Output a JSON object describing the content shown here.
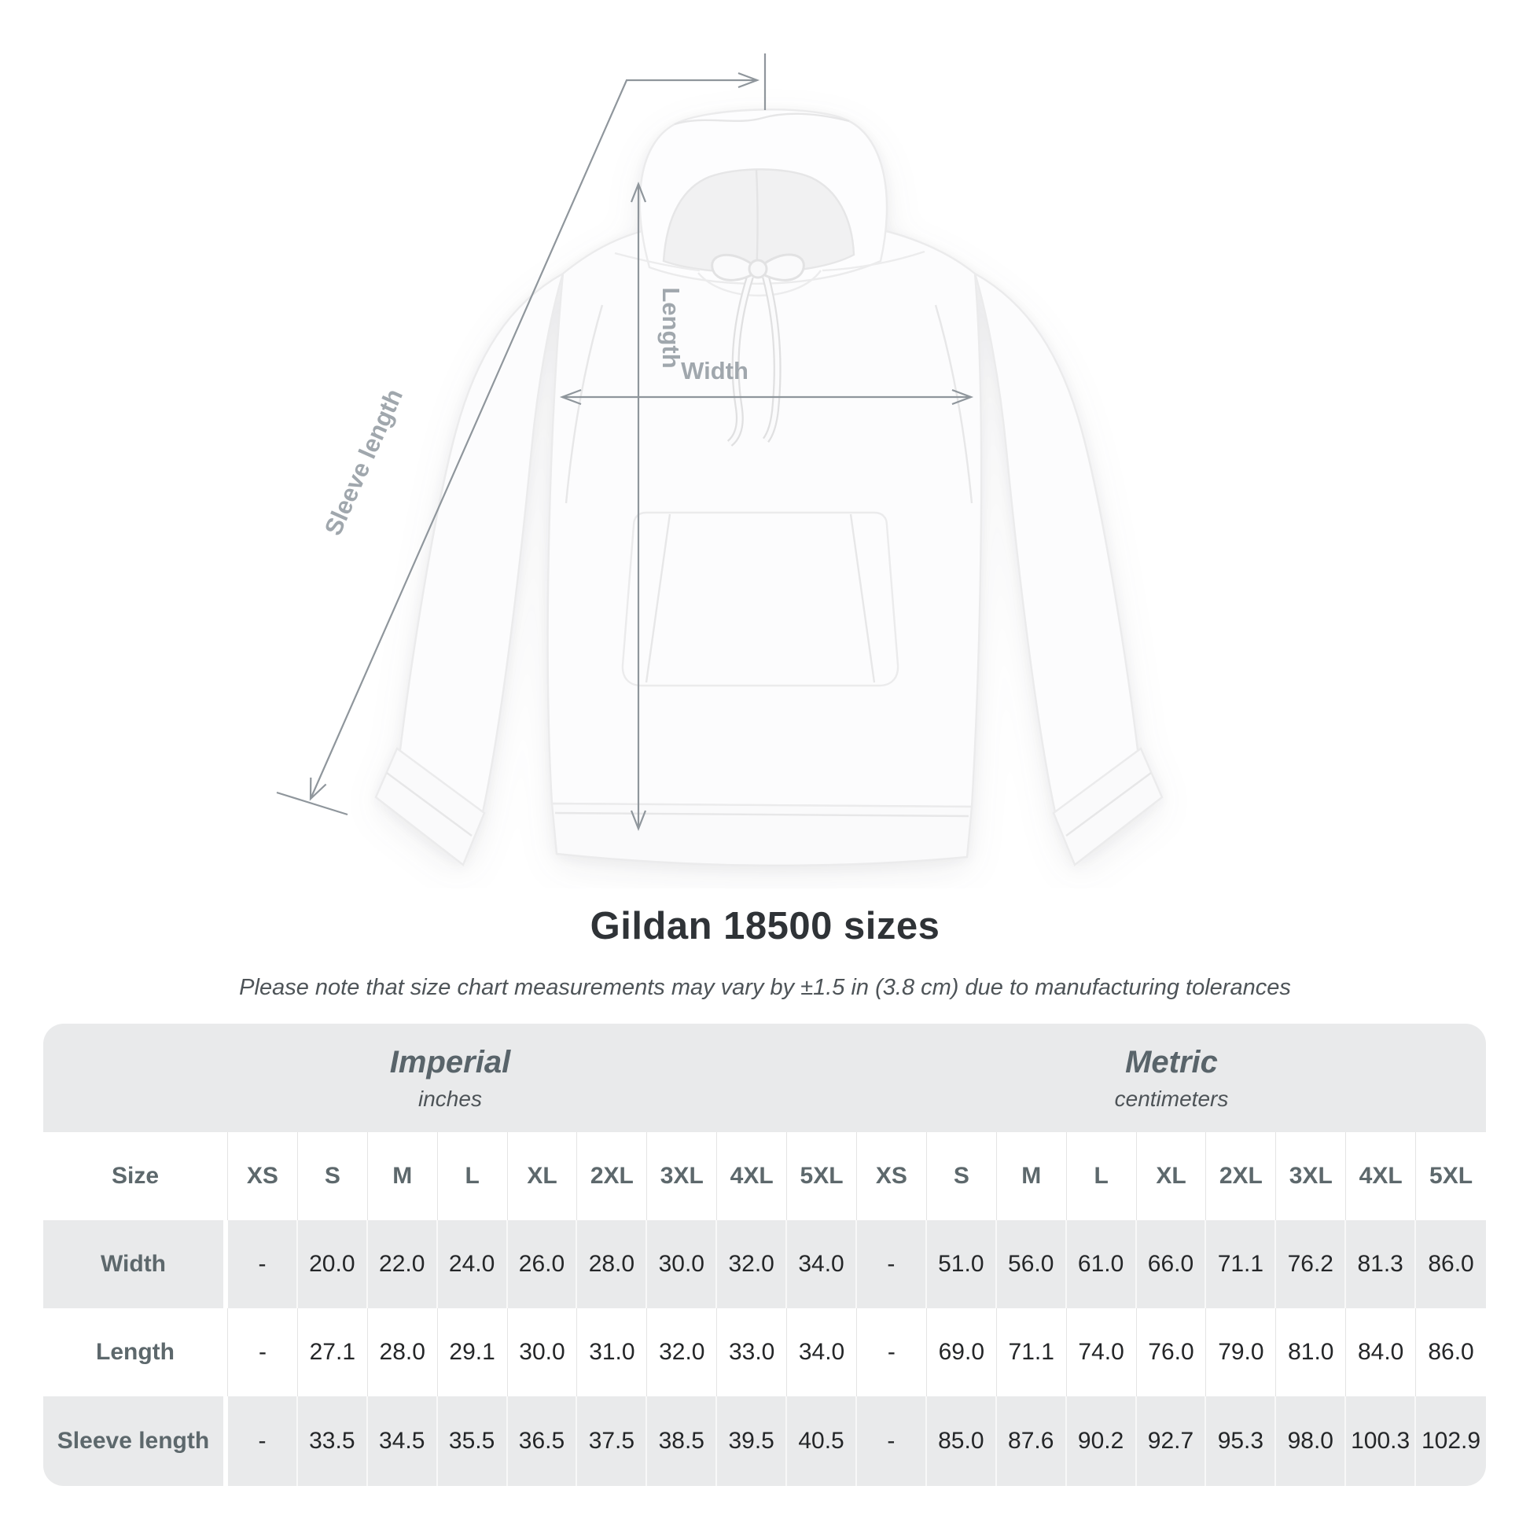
{
  "diagram": {
    "sleeve_label": "Sleeve length",
    "length_label": "Length",
    "width_label": "Width"
  },
  "heading": {
    "title": "Gildan 18500 sizes",
    "subtitle": "Please note that size chart measurements may vary by ±1.5 in (3.8 cm) due to manufacturing tolerances"
  },
  "table": {
    "unit_groups": [
      {
        "label": "Imperial",
        "sublabel": "inches"
      },
      {
        "label": "Metric",
        "sublabel": "centimeters"
      }
    ],
    "corner_label": "Size",
    "sizes": [
      "XS",
      "S",
      "M",
      "L",
      "XL",
      "2XL",
      "3XL",
      "4XL",
      "5XL"
    ],
    "rows": [
      {
        "label": "Width",
        "values": [
          "-",
          "20.0",
          "22.0",
          "24.0",
          "26.0",
          "28.0",
          "30.0",
          "32.0",
          "34.0",
          "-",
          "51.0",
          "56.0",
          "61.0",
          "66.0",
          "71.1",
          "76.2",
          "81.3",
          "86.0"
        ]
      },
      {
        "label": "Length",
        "values": [
          "-",
          "27.1",
          "28.0",
          "29.1",
          "30.0",
          "31.0",
          "32.0",
          "33.0",
          "34.0",
          "-",
          "69.0",
          "71.1",
          "74.0",
          "76.0",
          "79.0",
          "81.0",
          "84.0",
          "86.0"
        ]
      },
      {
        "label": "Sleeve length",
        "values": [
          "-",
          "33.5",
          "34.5",
          "35.5",
          "36.5",
          "37.5",
          "38.5",
          "39.5",
          "40.5",
          "-",
          "85.0",
          "87.6",
          "90.2",
          "92.7",
          "95.3",
          "98.0",
          "100.3",
          "102.9"
        ]
      }
    ]
  },
  "colors": {
    "arrow": "#8f969c",
    "diagram_label": "#a0a7ad",
    "band_background": "#e9eaeb",
    "title_text": "#2f3337",
    "number_text": "#242628",
    "header_text": "#5d686c"
  }
}
